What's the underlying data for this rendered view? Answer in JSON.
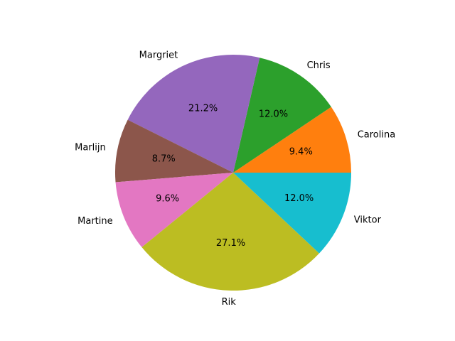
{
  "chart_data": {
    "type": "pie",
    "slices": [
      {
        "label": "Carolina",
        "value": 9.4,
        "pct_label": "9.4%",
        "color": "#ff7f0e"
      },
      {
        "label": "Chris",
        "value": 12.0,
        "pct_label": "12.0%",
        "color": "#2ca02c"
      },
      {
        "label": "Margriet",
        "value": 21.2,
        "pct_label": "21.2%",
        "color": "#9467bd"
      },
      {
        "label": "Marlijn",
        "value": 8.7,
        "pct_label": "8.7%",
        "color": "#8c564b"
      },
      {
        "label": "Martine",
        "value": 9.6,
        "pct_label": "9.6%",
        "color": "#e377c2"
      },
      {
        "label": "Rik",
        "value": 27.1,
        "pct_label": "27.1%",
        "color": "#bcbd22"
      },
      {
        "label": "Viktor",
        "value": 12.0,
        "pct_label": "12.0%",
        "color": "#17becf"
      }
    ],
    "start_angle_deg": 0,
    "direction": "counterclockwise",
    "title": ""
  }
}
